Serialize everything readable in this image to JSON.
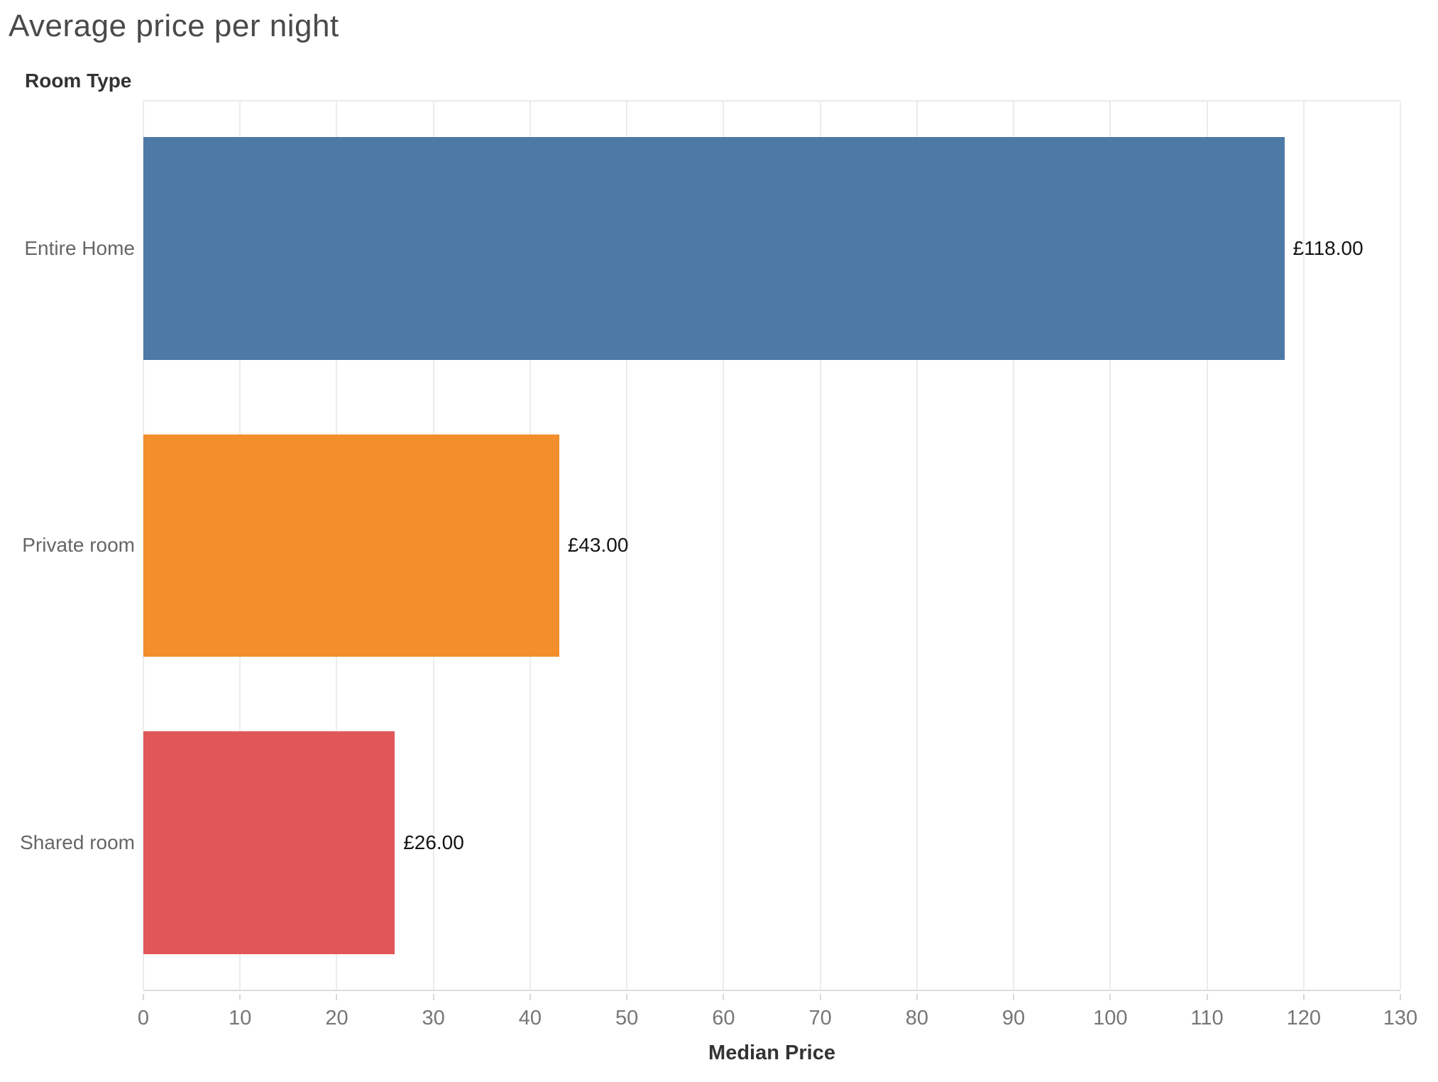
{
  "title": "Average price per night",
  "row_header": "Room Type",
  "chart_data": {
    "type": "bar",
    "orientation": "horizontal",
    "title": "Average price per night",
    "xlabel": "Median Price",
    "ylabel": "Room Type",
    "categories": [
      "Entire Home",
      "Private room",
      "Shared room"
    ],
    "values": [
      118,
      43,
      26
    ],
    "value_labels": [
      "£118.00",
      "£43.00",
      "£26.00"
    ],
    "bar_colors": [
      "#4e79a7",
      "#f28e2b",
      "#e15759"
    ],
    "xlim": [
      0,
      130
    ],
    "xticks": [
      0,
      10,
      20,
      30,
      40,
      50,
      60,
      70,
      80,
      90,
      100,
      110,
      120,
      130
    ],
    "grid": true,
    "legend": false,
    "colors": {
      "gridline": "#ececec",
      "axis_text": "#767676",
      "category_text": "#666666",
      "label_text": "#141414"
    }
  }
}
